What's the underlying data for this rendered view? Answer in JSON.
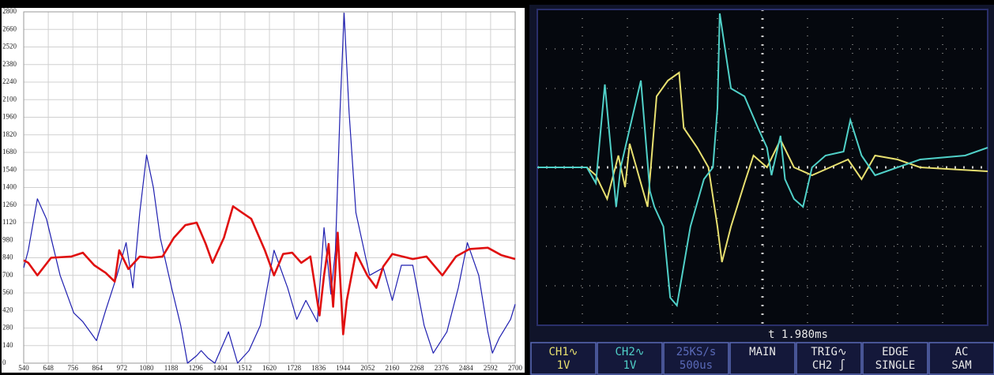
{
  "chart_data": [
    {
      "type": "line",
      "xlim": [
        540,
        2700
      ],
      "ylim": [
        0,
        2800
      ],
      "xticks": [
        540,
        648,
        756,
        864,
        972,
        1080,
        1188,
        1296,
        1404,
        1512,
        1620,
        1728,
        1836,
        1944,
        2052,
        2160,
        2268,
        2376,
        2484,
        2592,
        2700
      ],
      "yticks": [
        0,
        140,
        280,
        420,
        560,
        700,
        840,
        980,
        1120,
        1260,
        1400,
        1540,
        1680,
        1820,
        1960,
        2100,
        2240,
        2380,
        2520,
        2660,
        2800
      ],
      "grid": true,
      "series": [
        {
          "color": "#1f1fb0",
          "x": [
            540,
            560,
            600,
            640,
            700,
            760,
            800,
            860,
            900,
            950,
            990,
            1020,
            1050,
            1080,
            1110,
            1140,
            1190,
            1230,
            1260,
            1300,
            1320,
            1350,
            1380,
            1440,
            1480,
            1530,
            1580,
            1640,
            1700,
            1740,
            1780,
            1830,
            1860,
            1890,
            1910,
            1930,
            1948,
            1970,
            2000,
            2060,
            2120,
            2160,
            2200,
            2250,
            2300,
            2340,
            2400,
            2450,
            2490,
            2540,
            2580,
            2600,
            2630,
            2680,
            2700
          ],
          "values": [
            760,
            900,
            1310,
            1150,
            700,
            400,
            330,
            180,
            420,
            700,
            960,
            600,
            1200,
            1660,
            1400,
            1000,
            600,
            300,
            0,
            60,
            100,
            40,
            0,
            250,
            0,
            100,
            300,
            900,
            600,
            350,
            500,
            330,
            1080,
            550,
            900,
            2000,
            2790,
            2000,
            1200,
            700,
            760,
            500,
            780,
            780,
            300,
            80,
            250,
            600,
            960,
            700,
            250,
            80,
            200,
            350,
            470
          ]
        },
        {
          "color": "#e01010",
          "x": [
            540,
            560,
            600,
            660,
            750,
            800,
            850,
            900,
            940,
            960,
            1000,
            1050,
            1100,
            1150,
            1200,
            1250,
            1300,
            1340,
            1370,
            1420,
            1460,
            1500,
            1540,
            1600,
            1640,
            1680,
            1720,
            1760,
            1800,
            1840,
            1860,
            1880,
            1900,
            1920,
            1944,
            1960,
            2000,
            2050,
            2090,
            2120,
            2160,
            2250,
            2310,
            2380,
            2440,
            2500,
            2580,
            2640,
            2700
          ],
          "values": [
            820,
            800,
            700,
            840,
            850,
            880,
            780,
            720,
            650,
            900,
            750,
            850,
            840,
            850,
            1000,
            1100,
            1120,
            950,
            800,
            1000,
            1250,
            1200,
            1150,
            900,
            700,
            870,
            880,
            800,
            850,
            380,
            700,
            950,
            450,
            1040,
            230,
            500,
            880,
            700,
            600,
            770,
            870,
            830,
            850,
            700,
            850,
            910,
            920,
            860,
            830
          ]
        }
      ]
    },
    {
      "type": "scope",
      "xlim": [
        0,
        10
      ],
      "ylim": [
        -4,
        4
      ],
      "series": [
        {
          "color": "#e8e070",
          "x": [
            0,
            1.1,
            1.3,
            1.55,
            1.8,
            1.95,
            2.05,
            2.2,
            2.45,
            2.65,
            2.9,
            3.15,
            3.25,
            3.55,
            3.8,
            4.0,
            4.1,
            4.3,
            4.6,
            4.8,
            5.1,
            5.4,
            5.7,
            6.1,
            6.5,
            6.9,
            7.2,
            7.5,
            8.0,
            8.5,
            10
          ],
          "values": [
            0,
            0,
            -0.2,
            -0.8,
            0.3,
            -0.5,
            0.6,
            0,
            -1,
            1.8,
            2.2,
            2.4,
            1,
            0.5,
            0,
            -1.5,
            -2.4,
            -1.5,
            -0.4,
            0.3,
            0,
            0.7,
            0,
            -0.2,
            0,
            0.2,
            -0.3,
            0.3,
            0.2,
            0,
            -0.1
          ]
        },
        {
          "color": "#50d0c8",
          "x": [
            0,
            1.1,
            1.3,
            1.5,
            1.75,
            1.85,
            2.3,
            2.5,
            2.6,
            2.8,
            2.95,
            3.1,
            3.4,
            3.7,
            3.9,
            4.0,
            4.05,
            4.3,
            4.6,
            4.9,
            5.1,
            5.2,
            5.4,
            5.5,
            5.7,
            5.9,
            6.1,
            6.4,
            6.8,
            6.95,
            7.2,
            7.5,
            8.5,
            9.5,
            10
          ],
          "values": [
            0,
            0,
            -0.4,
            2.1,
            -1,
            0,
            2.2,
            -0.6,
            -1,
            -1.5,
            -3.3,
            -3.5,
            -1.5,
            -0.3,
            0,
            1.5,
            3.9,
            2,
            1.8,
            1,
            0.5,
            -0.2,
            0.8,
            -0.3,
            -0.8,
            -1,
            0,
            0.3,
            0.4,
            1.2,
            0.3,
            -0.2,
            0.2,
            0.3,
            0.5
          ]
        }
      ],
      "time_readout": "t 1.980ms",
      "readouts": [
        {
          "lines": [
            "CH1∿",
            "1V"
          ],
          "color": "#e8e070"
        },
        {
          "lines": [
            "CH2∿",
            "1V"
          ],
          "color": "#50d0c8"
        },
        {
          "lines": [
            "25KS/s",
            "500us"
          ],
          "color": "#5a6ab8"
        },
        {
          "lines": [
            "MAIN"
          ],
          "color": "#e8e8e8"
        },
        {
          "lines": [
            "TRIG∿",
            "CH2 ∫"
          ],
          "color": "#e8e8e8"
        },
        {
          "lines": [
            "EDGE",
            "SINGLE"
          ],
          "color": "#e8e8e8"
        },
        {
          "lines": [
            "AC",
            "SAM"
          ],
          "color": "#e8e8e8"
        }
      ]
    }
  ]
}
